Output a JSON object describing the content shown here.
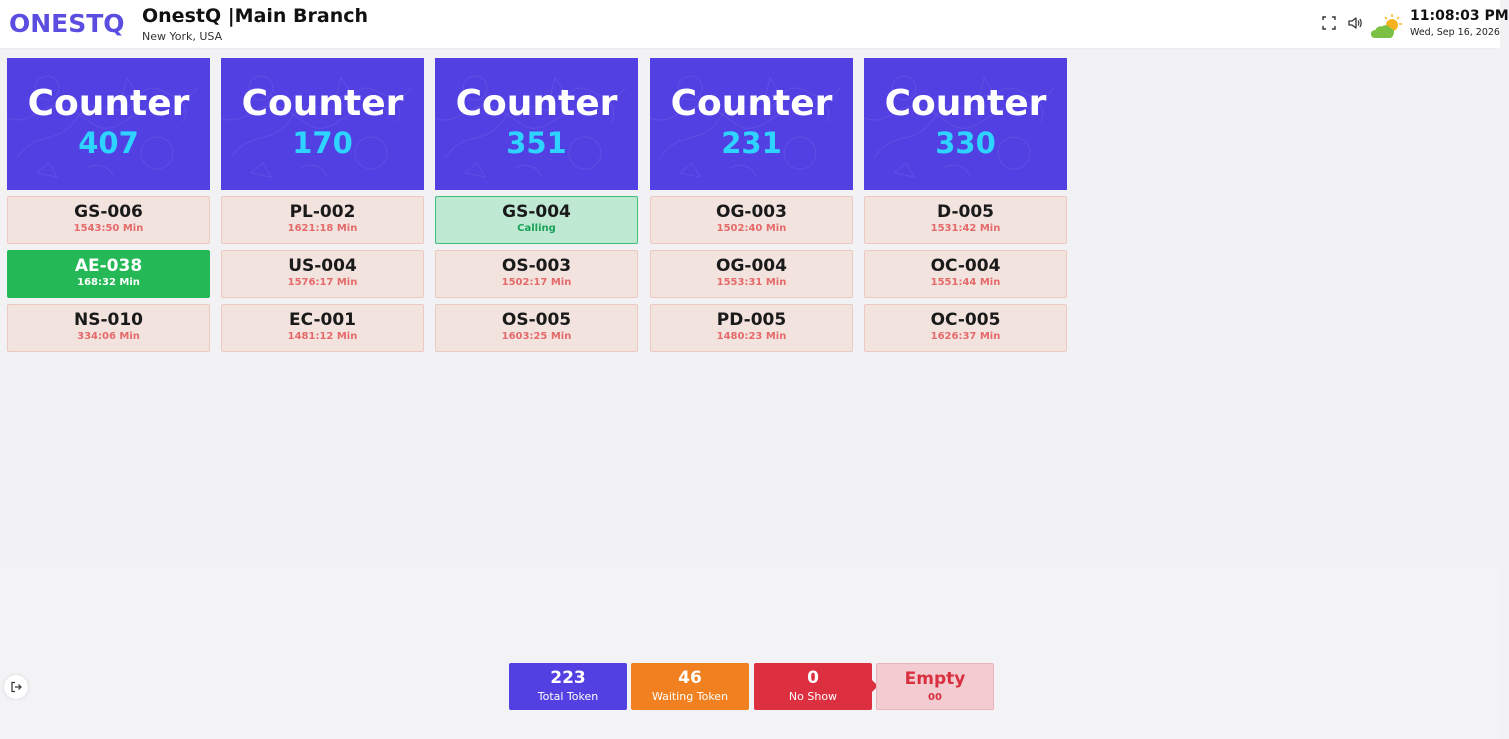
{
  "header": {
    "logo": "ONESTQ",
    "title": "OnestQ |Main Branch",
    "subtitle": "New York, USA",
    "time": "11:08:03 PM",
    "date": "Wed, Sep 16, 2026",
    "icons": [
      "fullscreen-icon",
      "volume-icon",
      "weather-icon"
    ]
  },
  "counters": [
    {
      "label": "Counter",
      "number": "407",
      "tokens": [
        {
          "code": "GS-006",
          "time": "1543:50 Min",
          "state": "waiting"
        },
        {
          "code": "AE-038",
          "time": "168:32 Min",
          "state": "active"
        },
        {
          "code": "NS-010",
          "time": "334:06 Min",
          "state": "waiting"
        }
      ]
    },
    {
      "label": "Counter",
      "number": "170",
      "tokens": [
        {
          "code": "PL-002",
          "time": "1621:18 Min",
          "state": "waiting"
        },
        {
          "code": "US-004",
          "time": "1576:17 Min",
          "state": "waiting"
        },
        {
          "code": "EC-001",
          "time": "1481:12 Min",
          "state": "waiting"
        }
      ]
    },
    {
      "label": "Counter",
      "number": "351",
      "tokens": [
        {
          "code": "GS-004",
          "time": "Calling",
          "state": "calling"
        },
        {
          "code": "OS-003",
          "time": "1502:17 Min",
          "state": "waiting"
        },
        {
          "code": "OS-005",
          "time": "1603:25 Min",
          "state": "waiting"
        }
      ]
    },
    {
      "label": "Counter",
      "number": "231",
      "tokens": [
        {
          "code": "OG-003",
          "time": "1502:40 Min",
          "state": "waiting"
        },
        {
          "code": "OG-004",
          "time": "1553:31 Min",
          "state": "waiting"
        },
        {
          "code": "PD-005",
          "time": "1480:23 Min",
          "state": "waiting"
        }
      ]
    },
    {
      "label": "Counter",
      "number": "330",
      "tokens": [
        {
          "code": "D-005",
          "time": "1531:42 Min",
          "state": "waiting"
        },
        {
          "code": "OC-004",
          "time": "1551:44 Min",
          "state": "waiting"
        },
        {
          "code": "OC-005",
          "time": "1626:37 Min",
          "state": "waiting"
        }
      ]
    }
  ],
  "stats": {
    "total": {
      "value": "223",
      "label": "Total Token"
    },
    "waiting": {
      "value": "46",
      "label": "Waiting Token"
    },
    "noshow": {
      "value": "0",
      "label": "No Show"
    },
    "empty": {
      "value": "Empty",
      "label": "00"
    }
  },
  "colors": {
    "primary": "#5240e2",
    "counter_number": "#2ed3ff",
    "active": "#24b956",
    "waiting_bg": "#f2e3df",
    "calling_bg": "#bfe9d2",
    "warning": "#f08020",
    "danger": "#dc2f3f"
  }
}
